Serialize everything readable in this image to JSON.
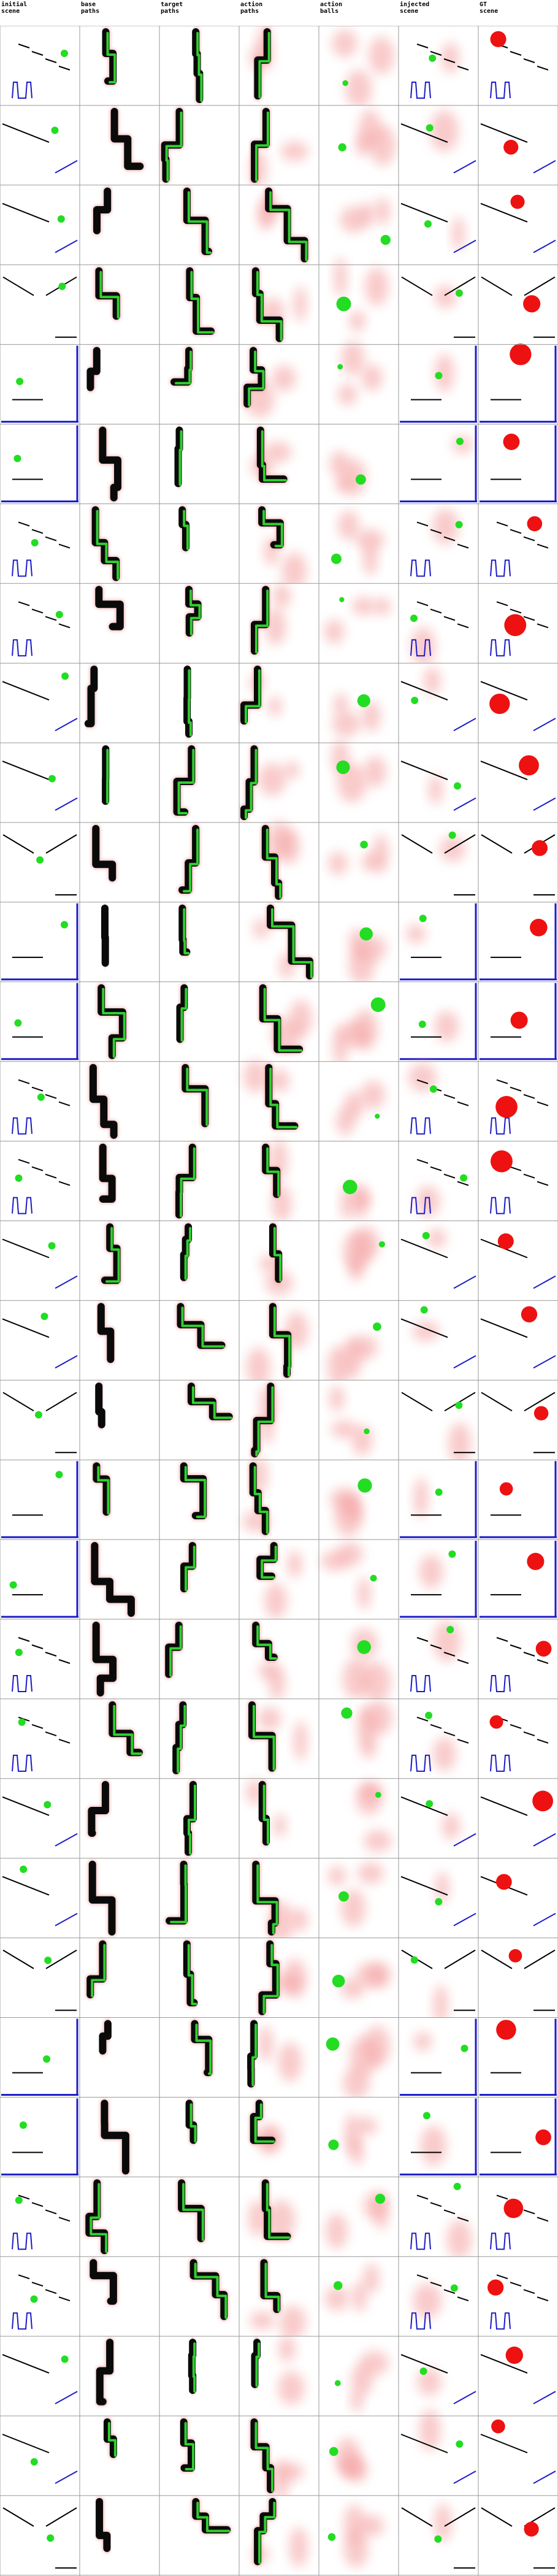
{
  "columns": [
    {
      "line1": "initial",
      "line2": "scene"
    },
    {
      "line1": "base",
      "line2": "paths"
    },
    {
      "line1": "target",
      "line2": "paths"
    },
    {
      "line1": "action",
      "line2": "paths"
    },
    {
      "line1": "action",
      "line2": "balls"
    },
    {
      "line1": "injected",
      "line2": "scene"
    },
    {
      "line1": "GT",
      "line2": "scene"
    }
  ],
  "colors": {
    "ball_green": "#22dd22",
    "ball_red": "#ee1111",
    "wall_blue": "#1c1cc8",
    "line_black": "#000000",
    "path_black": "#0a0a0a",
    "path_green": "#2fd02f",
    "heat_red": "#f4a0a0",
    "grid_line": "#999999"
  },
  "row_count": 32
}
